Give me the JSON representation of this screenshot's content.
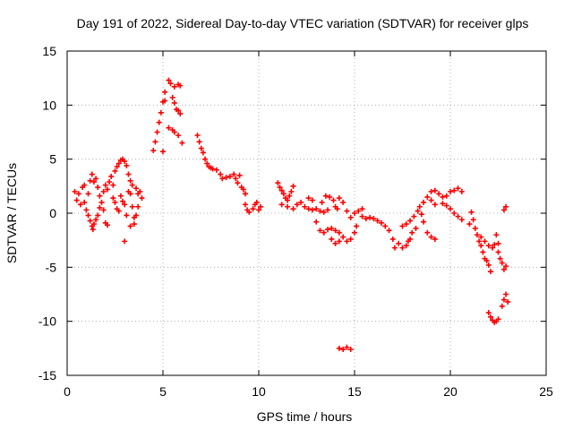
{
  "chart_data": {
    "type": "scatter",
    "title": "Day 191 of 2022, Sidereal Day-to-day VTEC variation (SDTVAR) for receiver glps",
    "xlabel": "GPS time / hours",
    "ylabel": "SDTVAR / TECUs",
    "xlim": [
      0,
      25
    ],
    "ylim": [
      -15,
      15
    ],
    "xticks": [
      0,
      5,
      10,
      15,
      20,
      25
    ],
    "yticks": [
      -15,
      -10,
      -5,
      0,
      5,
      10,
      15
    ],
    "grid": true,
    "marker": "plus",
    "color": "#ff0000",
    "series": [
      {
        "name": "SDTVAR",
        "points": [
          [
            0.4,
            2.0
          ],
          [
            0.5,
            1.2
          ],
          [
            0.6,
            1.8
          ],
          [
            0.7,
            0.8
          ],
          [
            0.8,
            2.4
          ],
          [
            0.9,
            1.0
          ],
          [
            1.0,
            0.3
          ],
          [
            1.1,
            -0.2
          ],
          [
            1.2,
            -0.7
          ],
          [
            1.3,
            -1.2
          ],
          [
            1.35,
            -1.5
          ],
          [
            0.9,
            2.6
          ],
          [
            1.1,
            1.8
          ],
          [
            1.2,
            3.0
          ],
          [
            1.3,
            3.6
          ],
          [
            1.4,
            2.9
          ],
          [
            1.5,
            3.2
          ],
          [
            1.6,
            2.4
          ],
          [
            1.7,
            1.6
          ],
          [
            1.8,
            1.0
          ],
          [
            1.9,
            2.0
          ],
          [
            1.4,
            -1.0
          ],
          [
            1.5,
            -0.6
          ],
          [
            1.6,
            -0.2
          ],
          [
            1.7,
            0.5
          ],
          [
            1.9,
            0.3
          ],
          [
            2.0,
            -0.9
          ],
          [
            2.1,
            -1.1
          ],
          [
            2.0,
            2.6
          ],
          [
            2.1,
            2.2
          ],
          [
            2.2,
            2.9
          ],
          [
            2.3,
            3.4
          ],
          [
            2.4,
            2.6
          ],
          [
            2.5,
            3.9
          ],
          [
            2.6,
            4.3
          ],
          [
            2.7,
            4.6
          ],
          [
            2.8,
            4.9
          ],
          [
            2.9,
            5.0
          ],
          [
            2.4,
            1.4
          ],
          [
            2.5,
            1.0
          ],
          [
            2.6,
            0.4
          ],
          [
            2.7,
            0.2
          ],
          [
            2.8,
            1.6
          ],
          [
            2.9,
            1.1
          ],
          [
            3.0,
            0.8
          ],
          [
            3.1,
            -0.2
          ],
          [
            3.0,
            4.8
          ],
          [
            3.1,
            4.4
          ],
          [
            3.2,
            3.6
          ],
          [
            3.3,
            3.0
          ],
          [
            3.3,
            1.8
          ],
          [
            3.4,
            0.6
          ],
          [
            3.5,
            -0.4
          ],
          [
            3.5,
            -1.0
          ],
          [
            3.3,
            -1.2
          ],
          [
            3.2,
            2.0
          ],
          [
            3.4,
            2.6
          ],
          [
            3.6,
            2.3
          ],
          [
            3.7,
            1.8
          ],
          [
            3.8,
            2.0
          ],
          [
            3.9,
            1.4
          ],
          [
            3.7,
            0.6
          ],
          [
            3.6,
            -0.2
          ],
          [
            3.0,
            -2.6
          ],
          [
            4.5,
            5.8
          ],
          [
            4.6,
            6.6
          ],
          [
            4.7,
            7.5
          ],
          [
            4.8,
            8.4
          ],
          [
            4.9,
            9.3
          ],
          [
            5.0,
            10.3
          ],
          [
            5.1,
            11.2
          ],
          [
            5.1,
            10.4
          ],
          [
            5.0,
            5.7
          ],
          [
            5.3,
            12.3
          ],
          [
            5.4,
            12.0
          ],
          [
            5.6,
            11.7
          ],
          [
            5.8,
            11.9
          ],
          [
            5.9,
            11.8
          ],
          [
            5.5,
            10.7
          ],
          [
            5.6,
            10.2
          ],
          [
            5.7,
            9.6
          ],
          [
            5.8,
            9.5
          ],
          [
            5.9,
            9.2
          ],
          [
            5.3,
            7.9
          ],
          [
            5.5,
            7.7
          ],
          [
            5.6,
            7.5
          ],
          [
            5.8,
            7.2
          ],
          [
            6.0,
            6.5
          ],
          [
            6.8,
            7.2
          ],
          [
            6.9,
            6.6
          ],
          [
            7.0,
            6.0
          ],
          [
            7.1,
            5.6
          ],
          [
            7.2,
            5.0
          ],
          [
            7.3,
            4.6
          ],
          [
            7.4,
            4.3
          ],
          [
            7.5,
            4.2
          ],
          [
            7.6,
            4.1
          ],
          [
            7.8,
            4.0
          ],
          [
            8.0,
            3.6
          ],
          [
            8.1,
            3.2
          ],
          [
            8.3,
            3.3
          ],
          [
            8.5,
            3.4
          ],
          [
            8.7,
            3.6
          ],
          [
            8.8,
            3.2
          ],
          [
            8.9,
            2.8
          ],
          [
            9.0,
            3.5
          ],
          [
            9.1,
            2.4
          ],
          [
            9.2,
            2.2
          ],
          [
            9.3,
            1.8
          ],
          [
            9.3,
            0.8
          ],
          [
            9.4,
            0.3
          ],
          [
            9.5,
            0.1
          ],
          [
            9.7,
            0.4
          ],
          [
            9.8,
            0.8
          ],
          [
            9.9,
            1.0
          ],
          [
            10.0,
            0.3
          ],
          [
            10.1,
            0.6
          ],
          [
            11.0,
            2.8
          ],
          [
            11.1,
            2.4
          ],
          [
            11.2,
            2.1
          ],
          [
            11.3,
            1.8
          ],
          [
            11.4,
            1.4
          ],
          [
            11.5,
            1.2
          ],
          [
            11.6,
            1.6
          ],
          [
            11.7,
            2.0
          ],
          [
            11.8,
            2.5
          ],
          [
            11.2,
            0.8
          ],
          [
            11.5,
            0.6
          ],
          [
            11.8,
            0.4
          ],
          [
            12.0,
            0.8
          ],
          [
            12.2,
            1.0
          ],
          [
            12.4,
            0.6
          ],
          [
            12.6,
            0.4
          ],
          [
            12.8,
            0.3
          ],
          [
            13.0,
            0.4
          ],
          [
            13.2,
            0.2
          ],
          [
            13.4,
            0.1
          ],
          [
            13.6,
            0.3
          ],
          [
            12.6,
            1.4
          ],
          [
            12.8,
            1.2
          ],
          [
            13.3,
            1.0
          ],
          [
            13.5,
            1.6
          ],
          [
            13.7,
            1.5
          ],
          [
            13.9,
            1.2
          ],
          [
            14.0,
            0.6
          ],
          [
            14.1,
            0.4
          ],
          [
            13.0,
            -0.8
          ],
          [
            13.2,
            -1.6
          ],
          [
            13.4,
            -1.8
          ],
          [
            13.6,
            -1.5
          ],
          [
            13.8,
            -1.4
          ],
          [
            14.0,
            -1.6
          ],
          [
            14.2,
            -1.8
          ],
          [
            14.4,
            -2.2
          ],
          [
            14.6,
            -2.6
          ],
          [
            13.8,
            -2.4
          ],
          [
            14.0,
            -2.8
          ],
          [
            14.2,
            -2.6
          ],
          [
            14.8,
            -2.4
          ],
          [
            15.0,
            -1.8
          ],
          [
            15.1,
            -1.2
          ],
          [
            14.2,
            1.4
          ],
          [
            14.4,
            1.0
          ],
          [
            14.6,
            0.2
          ],
          [
            14.8,
            -0.4
          ],
          [
            15.0,
            0.0
          ],
          [
            15.2,
            0.2
          ],
          [
            15.4,
            0.4
          ],
          [
            15.4,
            -0.3
          ],
          [
            15.6,
            -0.5
          ],
          [
            15.8,
            -0.4
          ],
          [
            16.0,
            -0.5
          ],
          [
            16.2,
            -0.7
          ],
          [
            16.4,
            -0.9
          ],
          [
            16.6,
            -1.2
          ],
          [
            16.8,
            -1.6
          ],
          [
            17.0,
            -2.4
          ],
          [
            17.1,
            -3.2
          ],
          [
            17.3,
            -2.8
          ],
          [
            17.5,
            -3.2
          ],
          [
            17.7,
            -3.0
          ],
          [
            17.8,
            -2.6
          ],
          [
            17.9,
            -2.4
          ],
          [
            18.0,
            -1.8
          ],
          [
            18.2,
            -1.4
          ],
          [
            17.5,
            -1.2
          ],
          [
            17.7,
            -1.0
          ],
          [
            17.9,
            -0.7
          ],
          [
            18.1,
            -0.3
          ],
          [
            18.3,
            0.2
          ],
          [
            18.5,
            -0.1
          ],
          [
            18.6,
            -0.8
          ],
          [
            18.8,
            -1.8
          ],
          [
            19.0,
            -2.2
          ],
          [
            19.2,
            -2.4
          ],
          [
            18.4,
            0.6
          ],
          [
            18.6,
            1.0
          ],
          [
            18.8,
            1.5
          ],
          [
            19.0,
            2.0
          ],
          [
            19.2,
            2.1
          ],
          [
            19.4,
            1.8
          ],
          [
            19.6,
            1.5
          ],
          [
            19.8,
            1.6
          ],
          [
            20.0,
            2.0
          ],
          [
            20.2,
            2.1
          ],
          [
            20.4,
            2.3
          ],
          [
            20.6,
            2.0
          ],
          [
            19.6,
            0.9
          ],
          [
            19.8,
            0.7
          ],
          [
            20.0,
            0.4
          ],
          [
            20.2,
            0.0
          ],
          [
            20.4,
            -0.3
          ],
          [
            20.6,
            -0.6
          ],
          [
            19.0,
            1.2
          ],
          [
            19.2,
            0.8
          ],
          [
            21.0,
            -1.0
          ],
          [
            21.1,
            0.1
          ],
          [
            21.2,
            -0.6
          ],
          [
            21.3,
            -1.4
          ],
          [
            21.4,
            -2.0
          ],
          [
            21.5,
            -2.6
          ],
          [
            21.6,
            -3.0
          ],
          [
            21.7,
            -3.6
          ],
          [
            21.8,
            -4.2
          ],
          [
            21.9,
            -4.4
          ],
          [
            22.0,
            -4.8
          ],
          [
            22.1,
            -5.4
          ],
          [
            21.6,
            -2.2
          ],
          [
            21.8,
            -2.6
          ],
          [
            22.0,
            -3.0
          ],
          [
            22.2,
            -3.2
          ],
          [
            22.3,
            -2.9
          ],
          [
            22.4,
            -2.0
          ],
          [
            22.5,
            -2.8
          ],
          [
            22.5,
            -3.6
          ],
          [
            22.6,
            -4.2
          ],
          [
            22.7,
            -4.6
          ],
          [
            22.8,
            -5.2
          ],
          [
            22.9,
            -4.9
          ],
          [
            22.8,
            0.3
          ],
          [
            22.9,
            0.6
          ],
          [
            22.0,
            -9.2
          ],
          [
            22.1,
            -9.6
          ],
          [
            22.2,
            -9.9
          ],
          [
            22.3,
            -10.1
          ],
          [
            22.4,
            -10.0
          ],
          [
            22.5,
            -9.8
          ],
          [
            22.7,
            -8.6
          ],
          [
            22.8,
            -8.0
          ],
          [
            22.9,
            -7.5
          ],
          [
            23.0,
            -8.2
          ],
          [
            14.2,
            -12.5
          ],
          [
            14.4,
            -12.6
          ],
          [
            14.6,
            -12.4
          ],
          [
            14.8,
            -12.6
          ]
        ]
      }
    ]
  }
}
